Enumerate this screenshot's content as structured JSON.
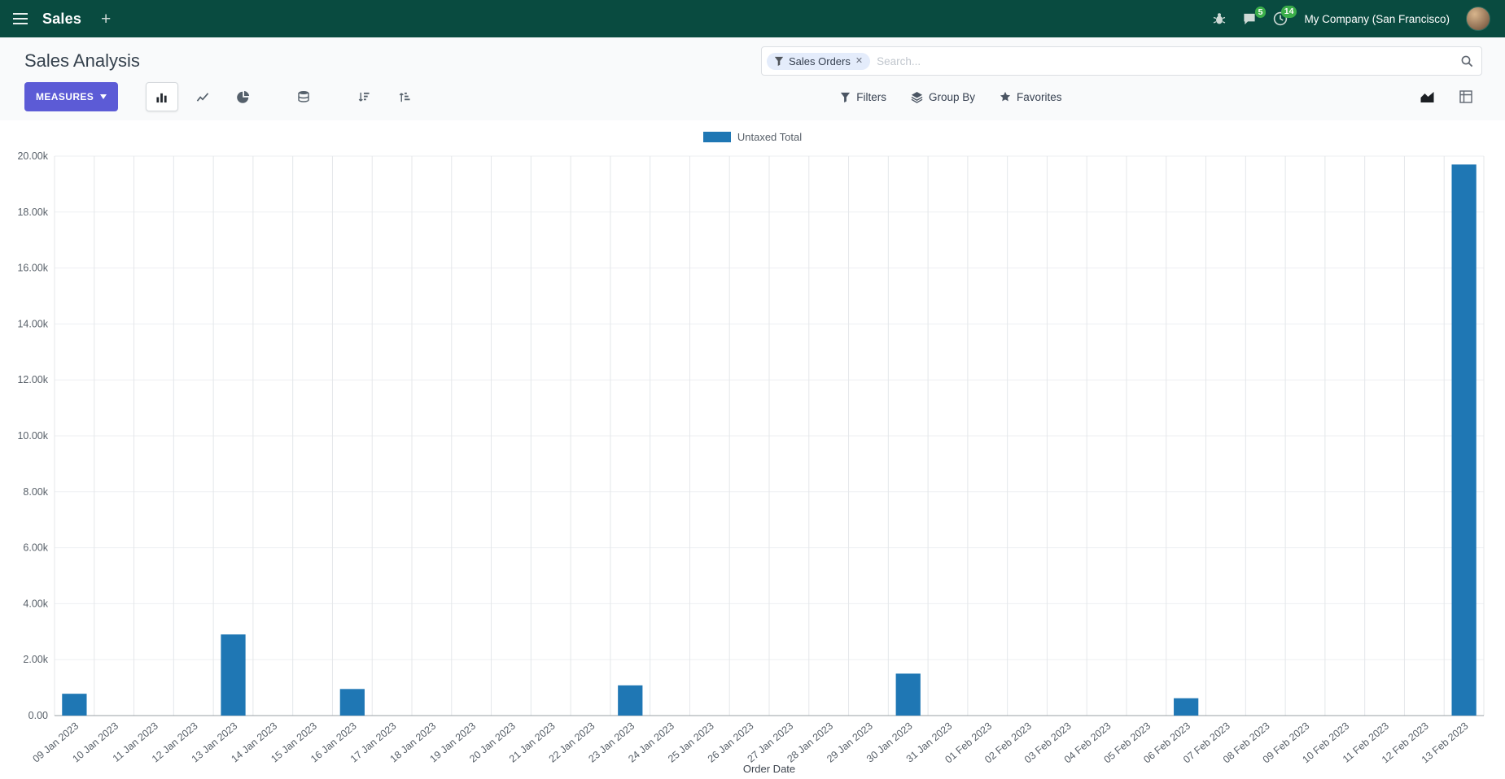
{
  "navbar": {
    "app": "Sales",
    "plus": "+",
    "messages_badge": "5",
    "activities_badge": "14",
    "company": "My Company (San Francisco)"
  },
  "control_panel": {
    "title": "Sales Analysis",
    "measures_label": "MEASURES",
    "filters_label": "Filters",
    "group_by_label": "Group By",
    "favorites_label": "Favorites",
    "search": {
      "facet": "Sales Orders",
      "facet_remove": "✕",
      "placeholder": "Search..."
    }
  },
  "chart_data": {
    "type": "bar",
    "title": "",
    "xlabel": "Order Date",
    "ylabel": "",
    "ylim": [
      0,
      20000
    ],
    "y_tick_step": 2000,
    "y_ticks": [
      "0.00",
      "2.00k",
      "4.00k",
      "6.00k",
      "8.00k",
      "10.00k",
      "12.00k",
      "14.00k",
      "16.00k",
      "18.00k",
      "20.00k"
    ],
    "grid": true,
    "legend_position": "top",
    "categories": [
      "09 Jan 2023",
      "10 Jan 2023",
      "11 Jan 2023",
      "12 Jan 2023",
      "13 Jan 2023",
      "14 Jan 2023",
      "15 Jan 2023",
      "16 Jan 2023",
      "17 Jan 2023",
      "18 Jan 2023",
      "19 Jan 2023",
      "20 Jan 2023",
      "21 Jan 2023",
      "22 Jan 2023",
      "23 Jan 2023",
      "24 Jan 2023",
      "25 Jan 2023",
      "26 Jan 2023",
      "27 Jan 2023",
      "28 Jan 2023",
      "29 Jan 2023",
      "30 Jan 2023",
      "31 Jan 2023",
      "01 Feb 2023",
      "02 Feb 2023",
      "03 Feb 2023",
      "04 Feb 2023",
      "05 Feb 2023",
      "06 Feb 2023",
      "07 Feb 2023",
      "08 Feb 2023",
      "09 Feb 2023",
      "10 Feb 2023",
      "11 Feb 2023",
      "12 Feb 2023",
      "13 Feb 2023"
    ],
    "series": [
      {
        "name": "Untaxed Total",
        "color": "#1f77b4",
        "values": [
          780,
          0,
          0,
          0,
          2900,
          0,
          0,
          950,
          0,
          0,
          0,
          0,
          0,
          0,
          1080,
          0,
          0,
          0,
          0,
          0,
          0,
          1500,
          0,
          0,
          0,
          0,
          0,
          0,
          620,
          0,
          0,
          0,
          0,
          0,
          0,
          19700
        ]
      }
    ]
  }
}
